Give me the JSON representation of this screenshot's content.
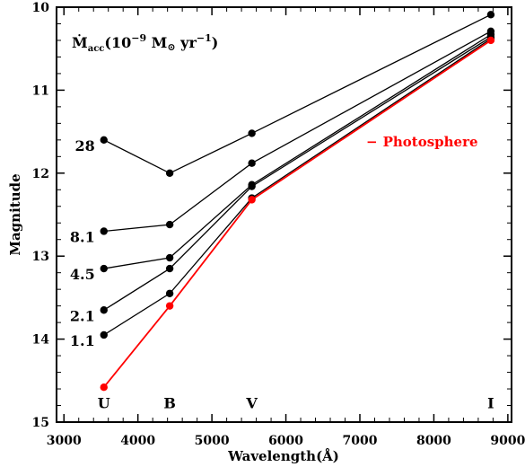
{
  "chart_data": {
    "type": "line",
    "xlabel": "Wavelength(Å)",
    "ylabel": "Magnitude",
    "xlim": [
      2900,
      9050
    ],
    "ylim": [
      15,
      10
    ],
    "y_inverted": true,
    "grid": false,
    "xticks": [
      3000,
      4000,
      5000,
      6000,
      7000,
      8000,
      9000
    ],
    "yticks": [
      10,
      11,
      12,
      13,
      14,
      15
    ],
    "x": [
      3540,
      4430,
      5540,
      8770
    ],
    "band_labels": [
      {
        "text": "U",
        "x": 3540,
        "y": 14.78
      },
      {
        "text": "B",
        "x": 4430,
        "y": 14.78
      },
      {
        "text": "V",
        "x": 5540,
        "y": 14.78
      },
      {
        "text": "I",
        "x": 8770,
        "y": 14.78
      }
    ],
    "legend_title": {
      "mdot": "Ṁ",
      "sub": "acc",
      "open": "(10",
      "exp1": "−9",
      "unit": " M",
      "sun": "⊙",
      "yr": " yr",
      "exp2": "−1",
      "close": ")"
    },
    "legend_entry": {
      "dash": "−",
      "label": "Photosphere",
      "color": "#ff0000"
    },
    "series": [
      {
        "label": "28",
        "color": "#000000",
        "values": [
          11.6,
          12.0,
          11.52,
          10.09
        ]
      },
      {
        "label": "8.1",
        "color": "#000000",
        "values": [
          12.7,
          12.62,
          11.88,
          10.29
        ]
      },
      {
        "label": "4.5",
        "color": "#000000",
        "values": [
          13.15,
          13.02,
          12.14,
          10.33
        ]
      },
      {
        "label": "2.1",
        "color": "#000000",
        "values": [
          13.65,
          13.15,
          12.16,
          10.36
        ]
      },
      {
        "label": "1.1",
        "color": "#000000",
        "values": [
          13.95,
          13.45,
          12.3,
          10.38
        ]
      },
      {
        "name": "Photosphere",
        "color": "#ff0000",
        "values": [
          14.58,
          13.6,
          12.32,
          10.4
        ]
      }
    ]
  }
}
